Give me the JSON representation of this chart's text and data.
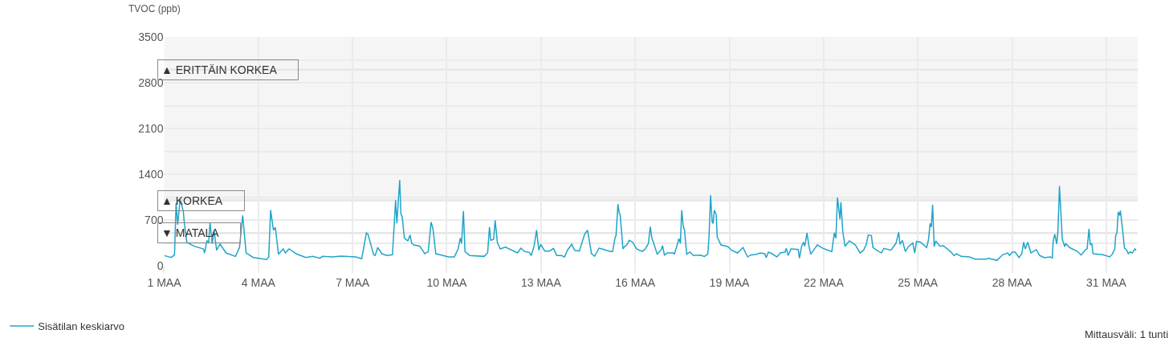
{
  "chart_data": {
    "type": "line",
    "ylabel": "TVOC (ppb)",
    "x": [
      1.0,
      1.23,
      1.33,
      1.38,
      1.43,
      1.51,
      1.61,
      1.64,
      1.72,
      1.95,
      2.25,
      2.29,
      2.36,
      2.42,
      2.46,
      2.53,
      2.59,
      2.67,
      2.78,
      2.97,
      3.27,
      3.4,
      3.5,
      3.61,
      3.84,
      4.26,
      4.33,
      4.39,
      4.48,
      4.54,
      4.64,
      4.79,
      4.86,
      4.98,
      5.2,
      5.51,
      5.73,
      5.96,
      6.04,
      6.34,
      6.64,
      7.1,
      7.29,
      7.44,
      7.49,
      7.67,
      7.72,
      7.8,
      7.93,
      8.08,
      8.27,
      8.37,
      8.41,
      8.5,
      8.54,
      8.58,
      8.65,
      8.76,
      8.83,
      8.88,
      8.95,
      9.14,
      9.3,
      9.41,
      9.5,
      9.56,
      9.65,
      9.83,
      10.05,
      10.24,
      10.36,
      10.43,
      10.47,
      10.53,
      10.58,
      10.73,
      11.19,
      11.3,
      11.36,
      11.4,
      11.49,
      11.54,
      11.61,
      11.7,
      11.87,
      12.25,
      12.36,
      12.48,
      12.63,
      12.69,
      12.78,
      12.86,
      12.93,
      12.99,
      13.12,
      13.27,
      13.4,
      13.5,
      13.65,
      13.75,
      13.84,
      13.98,
      14.07,
      14.22,
      14.39,
      14.48,
      14.61,
      14.71,
      14.85,
      14.94,
      15.2,
      15.28,
      15.36,
      15.39,
      15.45,
      15.49,
      15.52,
      15.61,
      15.66,
      15.73,
      15.81,
      15.92,
      16.04,
      16.23,
      16.32,
      16.42,
      16.48,
      16.53,
      16.58,
      16.7,
      16.83,
      16.87,
      16.93,
      17.02,
      17.21,
      17.25,
      17.39,
      17.44,
      17.48,
      17.53,
      17.57,
      17.64,
      17.74,
      17.86,
      18.08,
      18.2,
      18.31,
      18.35,
      18.4,
      18.45,
      18.48,
      18.52,
      18.58,
      18.61,
      18.73,
      18.95,
      19.07,
      19.26,
      19.43,
      19.58,
      19.67,
      19.86,
      19.98,
      20.13,
      20.17,
      20.24,
      20.36,
      20.51,
      20.62,
      20.77,
      20.81,
      20.87,
      20.96,
      21.19,
      21.23,
      21.3,
      21.36,
      21.4,
      21.47,
      21.53,
      21.59,
      21.72,
      21.8,
      21.98,
      22.21,
      22.26,
      22.34,
      22.39,
      22.44,
      22.52,
      22.55,
      22.61,
      22.68,
      22.82,
      23.01,
      23.16,
      23.27,
      23.36,
      23.42,
      23.52,
      23.57,
      23.69,
      23.84,
      23.92,
      24.14,
      24.3,
      24.39,
      24.43,
      24.51,
      24.6,
      24.71,
      24.84,
      24.9,
      24.96,
      25.09,
      25.28,
      25.34,
      25.39,
      25.43,
      25.47,
      25.52,
      25.57,
      25.7,
      25.81,
      26.04,
      26.15,
      26.23,
      26.38,
      26.64,
      26.83,
      27.17,
      27.25,
      27.52,
      27.7,
      27.86,
      27.92,
      28.01,
      28.1,
      28.22,
      28.31,
      28.37,
      28.42,
      28.5,
      28.6,
      28.77,
      28.88,
      29.03,
      29.22,
      29.28,
      29.31,
      29.36,
      29.42,
      29.46,
      29.51,
      29.6,
      29.68,
      29.71,
      29.83,
      30.09,
      30.2,
      30.32,
      30.39,
      30.45,
      30.49,
      30.54,
      30.58,
      30.89,
      31.11,
      31.19,
      31.27,
      31.3,
      31.34,
      31.38,
      31.42,
      31.45,
      31.53,
      31.58,
      31.64,
      31.7,
      31.75,
      31.83,
      31.91,
      31.95
    ],
    "series": [
      {
        "name": "Sisätilan keskiarvo",
        "color": "#1fa5c9",
        "values": [
          155,
          127,
          168,
          960,
          626,
          1019,
          835,
          667,
          360,
          299,
          258,
          196,
          381,
          360,
          663,
          340,
          537,
          237,
          332,
          196,
          143,
          279,
          770,
          196,
          127,
          95,
          135,
          851,
          544,
          586,
          176,
          258,
          196,
          258,
          184,
          127,
          143,
          114,
          143,
          135,
          147,
          135,
          107,
          503,
          483,
          168,
          156,
          279,
          184,
          156,
          168,
          1003,
          647,
          1310,
          790,
          749,
          421,
          381,
          470,
          348,
          319,
          299,
          184,
          217,
          667,
          565,
          184,
          163,
          135,
          135,
          258,
          421,
          340,
          839,
          217,
          156,
          143,
          196,
          593,
          389,
          402,
          696,
          360,
          258,
          286,
          196,
          270,
          217,
          205,
          156,
          299,
          544,
          237,
          328,
          225,
          225,
          266,
          156,
          156,
          135,
          237,
          328,
          237,
          225,
          483,
          544,
          184,
          147,
          270,
          258,
          217,
          217,
          430,
          463,
          942,
          810,
          782,
          258,
          291,
          319,
          389,
          360,
          258,
          217,
          258,
          340,
          598,
          421,
          360,
          176,
          249,
          307,
          163,
          196,
          196,
          176,
          414,
          340,
          851,
          605,
          544,
          176,
          209,
          156,
          163,
          143,
          176,
          442,
          1077,
          667,
          647,
          851,
          782,
          442,
          319,
          291,
          237,
          196,
          279,
          135,
          163,
          176,
          196,
          184,
          123,
          209,
          184,
          135,
          196,
          209,
          266,
          156,
          258,
          249,
          114,
          299,
          360,
          299,
          503,
          307,
          176,
          266,
          319,
          266,
          225,
          217,
          503,
          421,
          1044,
          709,
          974,
          524,
          299,
          381,
          319,
          196,
          237,
          328,
          470,
          463,
          279,
          237,
          196,
          266,
          237,
          340,
          512,
          328,
          389,
          217,
          299,
          348,
          196,
          372,
          360,
          279,
          402,
          647,
          593,
          933,
          291,
          381,
          299,
          307,
          217,
          156,
          184,
          143,
          135,
          102,
          102,
          114,
          82,
          168,
          196,
          156,
          209,
          209,
          127,
          184,
          360,
          258,
          360,
          196,
          246,
          156,
          123,
          135,
          114,
          381,
          483,
          332,
          524,
          1219,
          402,
          291,
          340,
          279,
          217,
          163,
          237,
          258,
          565,
          319,
          340,
          184,
          168,
          135,
          176,
          258,
          463,
          503,
          823,
          770,
          843,
          503,
          266,
          249,
          184,
          209,
          196,
          258,
          237
        ]
      }
    ],
    "xlim": [
      1,
      32
    ],
    "xticks": [
      {
        "value": 1,
        "label": "1 MAA"
      },
      {
        "value": 4,
        "label": "4 MAA"
      },
      {
        "value": 7,
        "label": "7 MAA"
      },
      {
        "value": 10,
        "label": "10 MAA"
      },
      {
        "value": 13,
        "label": "13 MAA"
      },
      {
        "value": 16,
        "label": "16 MAA"
      },
      {
        "value": 19,
        "label": "19 MAA"
      },
      {
        "value": 22,
        "label": "22 MAA"
      },
      {
        "value": 25,
        "label": "25 MAA"
      },
      {
        "value": 28,
        "label": "28 MAA"
      },
      {
        "value": 31,
        "label": "31 MAA"
      }
    ],
    "ylim": [
      0,
      3500
    ],
    "yticks": [
      0,
      {
        "value": 350,
        "label": null
      },
      700,
      {
        "value": 1050,
        "label": null
      },
      1400,
      {
        "value": 1750,
        "label": null
      },
      2100,
      {
        "value": 2450,
        "label": null
      },
      2800,
      {
        "value": 3150,
        "label": null
      },
      3500
    ],
    "bands": [
      {
        "axis": "y",
        "from": 1000,
        "to": 3500,
        "color": "#f5f5f5"
      }
    ],
    "ref_lines": [
      {
        "axis": "y",
        "value": 3000,
        "label": "▲ ERITTÄIN KORKEA",
        "color": "#e6e6e6"
      },
      {
        "axis": "y",
        "value": 1000,
        "label": "▲ KORKEA",
        "color": "#e6e6e6"
      },
      {
        "axis": "y",
        "value": 500,
        "label": "▼ MATALA",
        "color": "#e6e6e6"
      }
    ],
    "annotations": [
      "Mittausväli: 1 tunti"
    ],
    "grid": true,
    "legend": "bottom left",
    "marker": "none",
    "line_style": "solid"
  }
}
